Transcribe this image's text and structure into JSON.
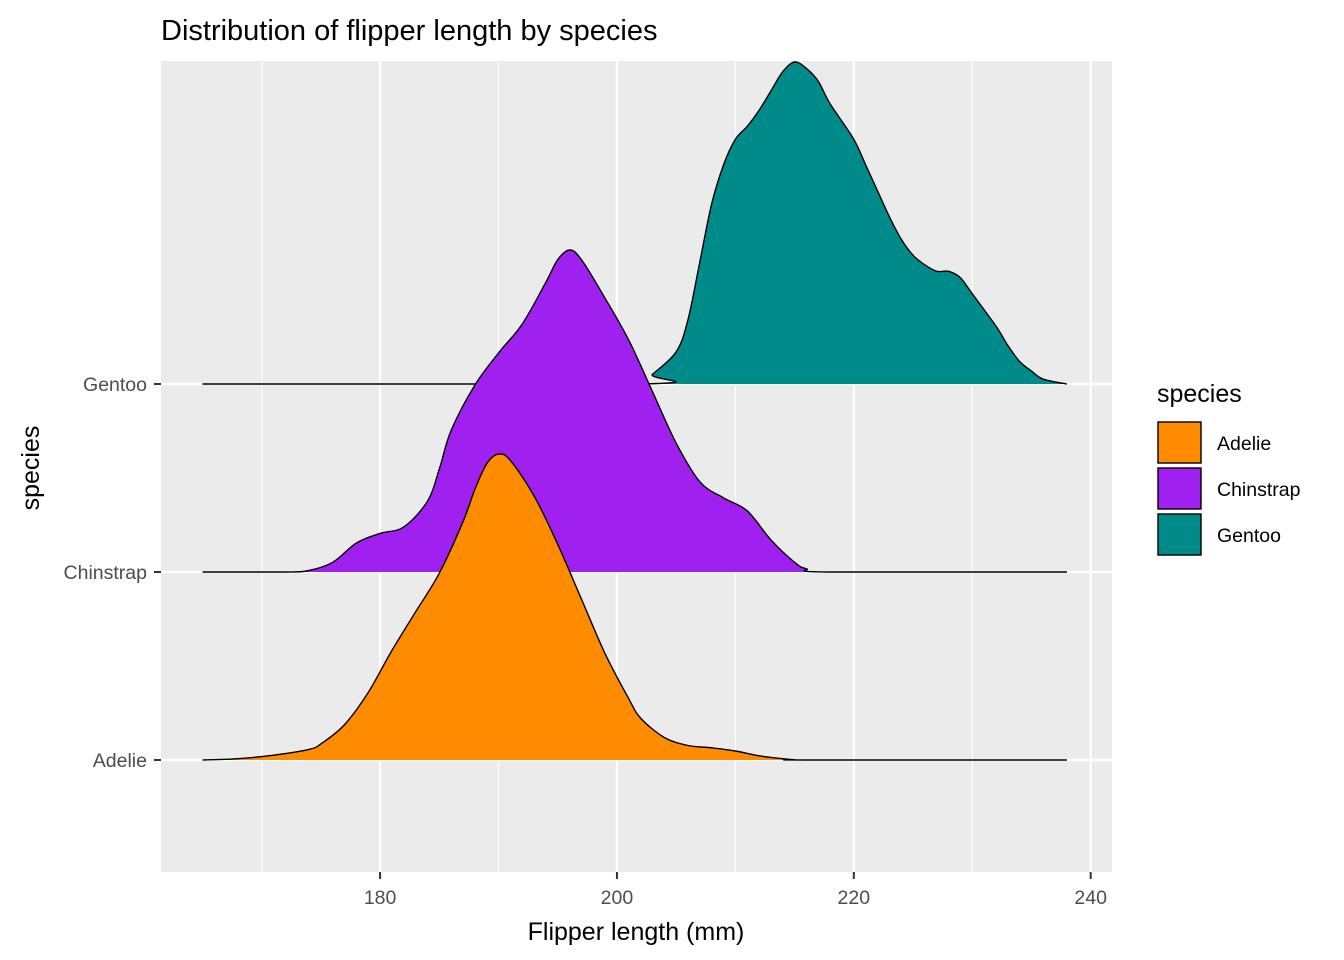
{
  "chart_data": {
    "type": "ridgeline",
    "title": "Distribution of flipper length by species",
    "xlabel": "Flipper length (mm)",
    "ylabel": "species",
    "xlim": [
      161.5,
      241.8
    ],
    "x_ticks": [
      180,
      200,
      220,
      240
    ],
    "x_minor_ticks": [
      170,
      190,
      210,
      230
    ],
    "categories": [
      "Adelie",
      "Chinstrap",
      "Gentoo"
    ],
    "grid": true,
    "legend": {
      "title": "species",
      "position": "right",
      "entries": [
        "Adelie",
        "Chinstrap",
        "Gentoo"
      ]
    },
    "colors": {
      "Adelie": "#FF8C00",
      "Chinstrap": "#A020F0",
      "Gentoo": "#008B8B",
      "panel": "#EBEBEB",
      "grid": "#FFFFFF",
      "outline": "#000000"
    },
    "density_range": [
      165,
      238
    ],
    "series": [
      {
        "name": "Adelie",
        "points": [
          [
            165,
            0
          ],
          [
            168,
            0.004
          ],
          [
            171,
            0.015
          ],
          [
            174,
            0.033
          ],
          [
            175,
            0.05
          ],
          [
            177,
            0.11
          ],
          [
            179,
            0.21
          ],
          [
            181,
            0.34
          ],
          [
            183,
            0.46
          ],
          [
            185,
            0.58
          ],
          [
            187,
            0.74
          ],
          [
            188,
            0.84
          ],
          [
            189,
            0.92
          ],
          [
            190,
            0.95
          ],
          [
            191,
            0.93
          ],
          [
            193,
            0.82
          ],
          [
            195,
            0.67
          ],
          [
            197,
            0.5
          ],
          [
            199,
            0.33
          ],
          [
            201,
            0.19
          ],
          [
            202,
            0.13
          ],
          [
            204,
            0.07
          ],
          [
            206,
            0.045
          ],
          [
            208,
            0.038
          ],
          [
            210,
            0.028
          ],
          [
            212,
            0.013
          ],
          [
            214,
            0.004
          ],
          [
            215,
            0.001
          ],
          [
            216,
            0
          ],
          [
            238,
            0
          ]
        ]
      },
      {
        "name": "Chinstrap",
        "points": [
          [
            165,
            0
          ],
          [
            172,
            0
          ],
          [
            174,
            0.005
          ],
          [
            176,
            0.03
          ],
          [
            178,
            0.09
          ],
          [
            180,
            0.12
          ],
          [
            182,
            0.14
          ],
          [
            184,
            0.22
          ],
          [
            185,
            0.32
          ],
          [
            186,
            0.44
          ],
          [
            188,
            0.58
          ],
          [
            190,
            0.68
          ],
          [
            192,
            0.77
          ],
          [
            194,
            0.9
          ],
          [
            195,
            0.97
          ],
          [
            196,
            1.0
          ],
          [
            197,
            0.97
          ],
          [
            199,
            0.85
          ],
          [
            201,
            0.72
          ],
          [
            203,
            0.56
          ],
          [
            205,
            0.4
          ],
          [
            207,
            0.28
          ],
          [
            209,
            0.23
          ],
          [
            211,
            0.19
          ],
          [
            213,
            0.1
          ],
          [
            215,
            0.03
          ],
          [
            216,
            0.01
          ],
          [
            218,
            0
          ],
          [
            238,
            0
          ]
        ]
      },
      {
        "name": "Gentoo",
        "points": [
          [
            165,
            0
          ],
          [
            202,
            0
          ],
          [
            203,
            0.03
          ],
          [
            205,
            0.1
          ],
          [
            206,
            0.2
          ],
          [
            207,
            0.38
          ],
          [
            208,
            0.56
          ],
          [
            209,
            0.68
          ],
          [
            210,
            0.76
          ],
          [
            211,
            0.8
          ],
          [
            212,
            0.85
          ],
          [
            213,
            0.91
          ],
          [
            214,
            0.97
          ],
          [
            215,
            1.0
          ],
          [
            216,
            0.98
          ],
          [
            217,
            0.94
          ],
          [
            218,
            0.87
          ],
          [
            220,
            0.76
          ],
          [
            221,
            0.68
          ],
          [
            222,
            0.6
          ],
          [
            223,
            0.52
          ],
          [
            224,
            0.45
          ],
          [
            225,
            0.4
          ],
          [
            226,
            0.37
          ],
          [
            227,
            0.35
          ],
          [
            228,
            0.35
          ],
          [
            229,
            0.33
          ],
          [
            230,
            0.28
          ],
          [
            232,
            0.18
          ],
          [
            233,
            0.12
          ],
          [
            234,
            0.07
          ],
          [
            235,
            0.04
          ],
          [
            236,
            0.015
          ],
          [
            238,
            0
          ]
        ]
      }
    ]
  }
}
